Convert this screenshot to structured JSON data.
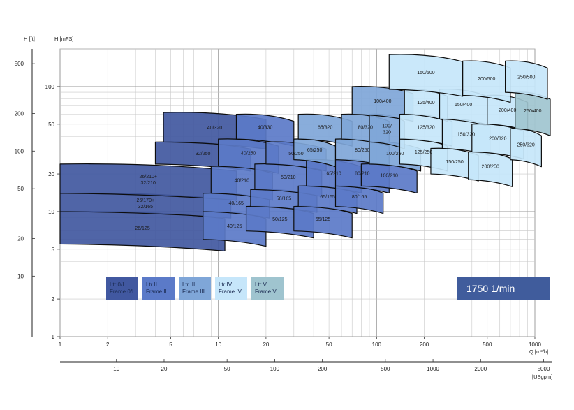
{
  "chart_data": {
    "type": "area",
    "title": "",
    "speed_label": "1750 1/min",
    "x_axis": {
      "label": "Q [m³/h]",
      "scale": "log",
      "range": [
        1,
        1000
      ],
      "ticks": [
        "1",
        "2",
        "5",
        "10",
        "20",
        "50",
        "100",
        "200",
        "500",
        "1000"
      ],
      "tick_values": [
        1,
        2,
        5,
        10,
        20,
        50,
        100,
        200,
        500,
        1000
      ]
    },
    "x2_axis": {
      "label": "[USgpm]",
      "ticks": [
        "10",
        "20",
        "50",
        "100",
        "200",
        "500",
        "1000",
        "2000",
        "5000"
      ],
      "tick_values": [
        10,
        20,
        50,
        100,
        200,
        500,
        1000,
        2000,
        5000
      ]
    },
    "y_axis": {
      "label": "H [mFS]",
      "scale": "log",
      "range": [
        1,
        200
      ],
      "ticks": [
        "1",
        "2",
        "5",
        "10",
        "20",
        "50",
        "100"
      ],
      "tick_values": [
        1,
        2,
        5,
        10,
        20,
        50,
        100
      ]
    },
    "y2_axis": {
      "label": "H [ft]",
      "ticks": [
        "10",
        "20",
        "50",
        "100",
        "200",
        "500"
      ],
      "tick_values": [
        10,
        20,
        50,
        100,
        200,
        500
      ]
    },
    "grid": true,
    "legend": {
      "placement": "bottom-left",
      "entries": [
        {
          "line1": "Ltr 0/I",
          "line2": "Frame 0/I",
          "color": "#4158a0"
        },
        {
          "line1": "Ltr II",
          "line2": "Frame II",
          "color": "#5b7ac8"
        },
        {
          "line1": "Ltr III",
          "line2": "Frame III",
          "color": "#7fa6d8"
        },
        {
          "line1": "Ltr IV",
          "line2": "Frame IV",
          "color": "#c6e6fa"
        },
        {
          "line1": "Ltr V",
          "line2": "Frame V",
          "color": "#9fc4cf"
        }
      ]
    },
    "regions": [
      {
        "label": "26/125",
        "frame": 0,
        "q": [
          1,
          11
        ],
        "h": [
          5.5,
          10
        ]
      },
      {
        "label": "26/170+ 32/165",
        "frame": 0,
        "q": [
          1,
          12
        ],
        "h": [
          10,
          14
        ]
      },
      {
        "label": "26/210+ 32/210",
        "frame": 0,
        "q": [
          1,
          13
        ],
        "h": [
          14,
          24
        ]
      },
      {
        "label": "32/250",
        "frame": 0,
        "q": [
          4,
          16
        ],
        "h": [
          24,
          36
        ]
      },
      {
        "label": "40/320",
        "frame": 0,
        "q": [
          4.5,
          20
        ],
        "h": [
          36,
          62
        ]
      },
      {
        "label": "40/125",
        "frame": 1,
        "q": [
          8,
          20
        ],
        "h": [
          6,
          10
        ]
      },
      {
        "label": "40/165",
        "frame": 1,
        "q": [
          8,
          21
        ],
        "h": [
          10,
          14
        ]
      },
      {
        "label": "40/210",
        "frame": 1,
        "q": [
          9,
          22
        ],
        "h": [
          14,
          23
        ]
      },
      {
        "label": "40/250",
        "frame": 1,
        "q": [
          10,
          24
        ],
        "h": [
          23,
          38
        ]
      },
      {
        "label": "40/330",
        "frame": 1,
        "q": [
          13,
          30
        ],
        "h": [
          38,
          60
        ]
      },
      {
        "label": "50/125",
        "frame": 1,
        "q": [
          15,
          40
        ],
        "h": [
          7,
          11
        ]
      },
      {
        "label": "50/165",
        "frame": 1,
        "q": [
          16,
          42
        ],
        "h": [
          11,
          15
        ]
      },
      {
        "label": "50/210",
        "frame": 1,
        "q": [
          17,
          45
        ],
        "h": [
          15,
          24
        ]
      },
      {
        "label": "50/250",
        "frame": 1,
        "q": [
          20,
          48
        ],
        "h": [
          24,
          36
        ]
      },
      {
        "label": "65/125",
        "frame": 1,
        "q": [
          30,
          70
        ],
        "h": [
          7,
          11
        ]
      },
      {
        "label": "65/165",
        "frame": 1,
        "q": [
          32,
          75
        ],
        "h": [
          11,
          16
        ]
      },
      {
        "label": "65/210",
        "frame": 1,
        "q": [
          36,
          80
        ],
        "h": [
          16,
          26
        ]
      },
      {
        "label": "65/250",
        "frame": 2,
        "q": [
          30,
          55
        ],
        "h": [
          26,
          38
        ]
      },
      {
        "label": "65/320",
        "frame": 2,
        "q": [
          32,
          70
        ],
        "h": [
          38,
          60
        ]
      },
      {
        "label": "80/165",
        "frame": 1,
        "q": [
          55,
          110
        ],
        "h": [
          11,
          16
        ]
      },
      {
        "label": "80/210",
        "frame": 1,
        "q": [
          55,
          120
        ],
        "h": [
          16,
          26
        ]
      },
      {
        "label": "80/250",
        "frame": 2,
        "q": [
          55,
          120
        ],
        "h": [
          26,
          38
        ]
      },
      {
        "label": "80/320",
        "frame": 2,
        "q": [
          60,
          120
        ],
        "h": [
          38,
          60
        ]
      },
      {
        "label": "100/210",
        "frame": 1,
        "q": [
          80,
          180
        ],
        "h": [
          16,
          24
        ]
      },
      {
        "label": "100/250",
        "frame": 2,
        "q": [
          90,
          190
        ],
        "h": [
          24,
          36
        ]
      },
      {
        "label": "100/ 320",
        "frame": 2,
        "q": [
          90,
          150
        ],
        "h": [
          36,
          60
        ]
      },
      {
        "label": "100/400",
        "frame": 2,
        "q": [
          70,
          170
        ],
        "h": [
          60,
          100
        ]
      },
      {
        "label": "125/250",
        "frame": 3,
        "q": [
          140,
          280
        ],
        "h": [
          24,
          38
        ]
      },
      {
        "label": "125/320",
        "frame": 3,
        "q": [
          140,
          300
        ],
        "h": [
          38,
          60
        ]
      },
      {
        "label": "125/400",
        "frame": 3,
        "q": [
          150,
          280
        ],
        "h": [
          60,
          95
        ]
      },
      {
        "label": "150/250",
        "frame": 3,
        "q": [
          220,
          440
        ],
        "h": [
          20,
          32
        ]
      },
      {
        "label": "150/320",
        "frame": 3,
        "q": [
          260,
          520
        ],
        "h": [
          32,
          55
        ]
      },
      {
        "label": "150/400",
        "frame": 3,
        "q": [
          250,
          500
        ],
        "h": [
          55,
          95
        ]
      },
      {
        "label": "150/500",
        "frame": 3,
        "q": [
          120,
          350
        ],
        "h": [
          95,
          180
        ]
      },
      {
        "label": "200/250",
        "frame": 3,
        "q": [
          380,
          720
        ],
        "h": [
          18,
          30
        ]
      },
      {
        "label": "200/320",
        "frame": 3,
        "q": [
          400,
          850
        ],
        "h": [
          30,
          50
        ]
      },
      {
        "label": "200/400",
        "frame": 3,
        "q": [
          500,
          900
        ],
        "h": [
          50,
          85
        ]
      },
      {
        "label": "200/500",
        "frame": 3,
        "q": [
          350,
          700
        ],
        "h": [
          85,
          160
        ]
      },
      {
        "label": "250/320",
        "frame": 3,
        "q": [
          700,
          1100
        ],
        "h": [
          26,
          46
        ]
      },
      {
        "label": "250/400",
        "frame": 4,
        "q": [
          750,
          1250
        ],
        "h": [
          46,
          90
        ]
      },
      {
        "label": "250/500",
        "frame": 3,
        "q": [
          650,
          1200
        ],
        "h": [
          90,
          160
        ]
      }
    ]
  }
}
